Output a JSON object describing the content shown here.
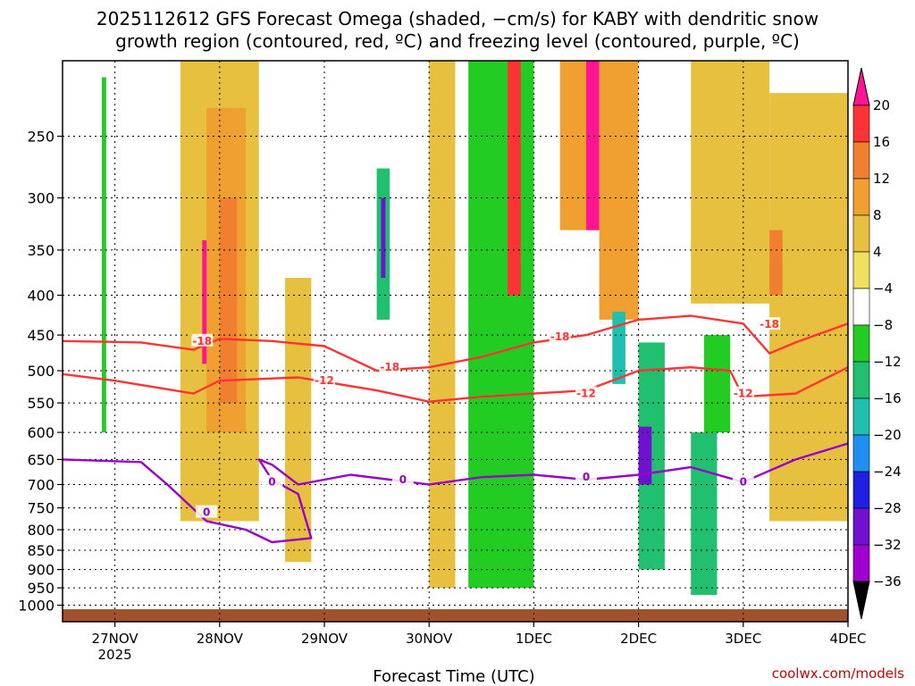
{
  "title_line1": "2025112612 GFS Forecast Omega (shaded, −cm/s) for KABY with dendritic snow",
  "title_line2": "growth region (contoured, red, ºC) and freezing level (contoured, purple, ºC)",
  "watermark": "coolwx.com/models",
  "chart_data": {
    "type": "heatmap",
    "xlabel": "Forecast Time (UTC)",
    "ylabel": "",
    "y_scale": "log-pressure",
    "ylim": [
      1050,
      200
    ],
    "xlim": [
      "2025-11-26T12",
      "2025-12-04T00"
    ],
    "x_ticks": [
      {
        "label": "27NOV",
        "sub": "2025",
        "time": "2025-11-27T00"
      },
      {
        "label": "28NOV",
        "sub": "",
        "time": "2025-11-28T00"
      },
      {
        "label": "29NOV",
        "sub": "",
        "time": "2025-11-29T00"
      },
      {
        "label": "30NOV",
        "sub": "",
        "time": "2025-11-30T00"
      },
      {
        "label": "1DEC",
        "sub": "",
        "time": "2025-12-01T00"
      },
      {
        "label": "2DEC",
        "sub": "",
        "time": "2025-12-02T00"
      },
      {
        "label": "3DEC",
        "sub": "",
        "time": "2025-12-03T00"
      },
      {
        "label": "4DEC",
        "sub": "",
        "time": "2025-12-04T00"
      }
    ],
    "y_ticks": [
      250,
      300,
      350,
      400,
      450,
      500,
      550,
      600,
      650,
      700,
      750,
      800,
      850,
      900,
      950,
      1000
    ],
    "grid": true,
    "colorbar": {
      "tick_labels": [
        "20",
        "16",
        "12",
        "8",
        "4",
        "−4",
        "−8",
        "−12",
        "−16",
        "−20",
        "−24",
        "−28",
        "−32",
        "−36"
      ],
      "colors": [
        "#ff1493",
        "#ff3333",
        "#f08030",
        "#f0a030",
        "#e8c040",
        "#f0e060",
        "#ffffff",
        "#22cc22",
        "#20c070",
        "#20c0b0",
        "#2090f0",
        "#2020e0",
        "#7010d0",
        "#a000d0",
        "#aaaaaa",
        "#000000"
      ]
    },
    "omega_field": [
      {
        "start": "2025-11-26T21",
        "end": "2025-11-26T22",
        "p_top": 210,
        "p_bottom": 600,
        "value": -8
      },
      {
        "start": "2025-11-27T06",
        "end": "2025-11-27T07",
        "p_top": 250,
        "p_bottom": 420,
        "value": -6
      },
      {
        "start": "2025-11-27T15",
        "end": "2025-11-28T09",
        "p_top": 200,
        "p_bottom": 780,
        "value": 6
      },
      {
        "start": "2025-11-27T21",
        "end": "2025-11-28T06",
        "p_top": 230,
        "p_bottom": 600,
        "value": 10
      },
      {
        "start": "2025-11-28T00",
        "end": "2025-11-28T04",
        "p_top": 300,
        "p_bottom": 550,
        "value": 14
      },
      {
        "start": "2025-11-27T20",
        "end": "2025-11-27T21",
        "p_top": 340,
        "p_bottom": 490,
        "value": 22
      },
      {
        "start": "2025-11-28T15",
        "end": "2025-11-28T21",
        "p_top": 380,
        "p_bottom": 880,
        "value": 5
      },
      {
        "start": "2025-11-29T12",
        "end": "2025-11-29T15",
        "p_top": 275,
        "p_bottom": 430,
        "value": -14
      },
      {
        "start": "2025-11-29T13",
        "end": "2025-11-29T14",
        "p_top": 300,
        "p_bottom": 380,
        "value": -30
      },
      {
        "start": "2025-11-30T00",
        "end": "2025-11-30T06",
        "p_top": 200,
        "p_bottom": 950,
        "value": 6
      },
      {
        "start": "2025-11-30T09",
        "end": "2025-12-01T00",
        "p_top": 200,
        "p_bottom": 950,
        "value": -10
      },
      {
        "start": "2025-11-30T18",
        "end": "2025-11-30T21",
        "p_top": 200,
        "p_bottom": 400,
        "value": 20
      },
      {
        "start": "2025-12-01T06",
        "end": "2025-12-01T15",
        "p_top": 200,
        "p_bottom": 330,
        "value": 12
      },
      {
        "start": "2025-12-01T12",
        "end": "2025-12-01T15",
        "p_top": 200,
        "p_bottom": 330,
        "value": 22
      },
      {
        "start": "2025-12-01T15",
        "end": "2025-12-02T00",
        "p_top": 200,
        "p_bottom": 430,
        "value": 10
      },
      {
        "start": "2025-12-01T18",
        "end": "2025-12-01T21",
        "p_top": 420,
        "p_bottom": 520,
        "value": -18
      },
      {
        "start": "2025-12-02T00",
        "end": "2025-12-02T06",
        "p_top": 460,
        "p_bottom": 900,
        "value": -12
      },
      {
        "start": "2025-12-02T00",
        "end": "2025-12-02T03",
        "p_top": 590,
        "p_bottom": 700,
        "value": -28
      },
      {
        "start": "2025-12-02T12",
        "end": "2025-12-02T18",
        "p_top": 600,
        "p_bottom": 970,
        "value": -12
      },
      {
        "start": "2025-12-02T15",
        "end": "2025-12-02T21",
        "p_top": 450,
        "p_bottom": 600,
        "value": -10
      },
      {
        "start": "2025-12-02T12",
        "end": "2025-12-03T06",
        "p_top": 200,
        "p_bottom": 410,
        "value": 8
      },
      {
        "start": "2025-12-03T06",
        "end": "2025-12-04T00",
        "p_top": 220,
        "p_bottom": 780,
        "value": 5
      },
      {
        "start": "2025-12-03T06",
        "end": "2025-12-03T09",
        "p_top": 330,
        "p_bottom": 400,
        "value": 16
      }
    ],
    "series": [
      {
        "contour": "-18",
        "color": "#ff3333",
        "label_positions": [
          {
            "time": "2025-11-27T20",
            "p": 458
          },
          {
            "time": "2025-11-29T15",
            "p": 495
          },
          {
            "time": "2025-12-01T06",
            "p": 452
          },
          {
            "time": "2025-12-03T06",
            "p": 436
          }
        ],
        "points": [
          {
            "time": "2025-11-26T12",
            "p": 458
          },
          {
            "time": "2025-11-27T06",
            "p": 460
          },
          {
            "time": "2025-11-27T18",
            "p": 470
          },
          {
            "time": "2025-11-28T00",
            "p": 455
          },
          {
            "time": "2025-11-28T12",
            "p": 458
          },
          {
            "time": "2025-11-29T00",
            "p": 465
          },
          {
            "time": "2025-11-29T12",
            "p": 500
          },
          {
            "time": "2025-11-30T00",
            "p": 495
          },
          {
            "time": "2025-11-30T12",
            "p": 480
          },
          {
            "time": "2025-12-01T00",
            "p": 460
          },
          {
            "time": "2025-12-01T12",
            "p": 450
          },
          {
            "time": "2025-12-02T00",
            "p": 430
          },
          {
            "time": "2025-12-02T12",
            "p": 425
          },
          {
            "time": "2025-12-03T00",
            "p": 435
          },
          {
            "time": "2025-12-03T06",
            "p": 475
          },
          {
            "time": "2025-12-03T12",
            "p": 460
          },
          {
            "time": "2025-12-04T00",
            "p": 435
          }
        ]
      },
      {
        "contour": "-12",
        "color": "#ff3333",
        "label_positions": [
          {
            "time": "2025-11-29T00",
            "p": 515
          },
          {
            "time": "2025-12-01T12",
            "p": 535
          },
          {
            "time": "2025-12-03T00",
            "p": 535
          }
        ],
        "points": [
          {
            "time": "2025-11-26T12",
            "p": 505
          },
          {
            "time": "2025-11-27T00",
            "p": 515
          },
          {
            "time": "2025-11-27T18",
            "p": 535
          },
          {
            "time": "2025-11-28T00",
            "p": 515
          },
          {
            "time": "2025-11-28T18",
            "p": 510
          },
          {
            "time": "2025-11-29T12",
            "p": 530
          },
          {
            "time": "2025-11-30T00",
            "p": 548
          },
          {
            "time": "2025-11-30T12",
            "p": 540
          },
          {
            "time": "2025-12-01T00",
            "p": 535
          },
          {
            "time": "2025-12-01T12",
            "p": 530
          },
          {
            "time": "2025-12-02T00",
            "p": 500
          },
          {
            "time": "2025-12-02T12",
            "p": 495
          },
          {
            "time": "2025-12-02T21",
            "p": 500
          },
          {
            "time": "2025-12-03T00",
            "p": 540
          },
          {
            "time": "2025-12-03T12",
            "p": 535
          },
          {
            "time": "2025-12-04T00",
            "p": 495
          }
        ]
      },
      {
        "contour": "0",
        "color": "#9900cc",
        "label_positions": [
          {
            "time": "2025-11-27T21",
            "p": 760
          },
          {
            "time": "2025-11-28T12",
            "p": 695
          },
          {
            "time": "2025-11-29T18",
            "p": 690
          },
          {
            "time": "2025-12-01T12",
            "p": 685
          },
          {
            "time": "2025-12-03T00",
            "p": 695
          }
        ],
        "points": [
          {
            "time": "2025-11-26T12",
            "p": 650
          },
          {
            "time": "2025-11-27T06",
            "p": 655
          },
          {
            "time": "2025-11-27T12",
            "p": 700
          },
          {
            "time": "2025-11-27T21",
            "p": 780
          },
          {
            "time": "2025-11-28T06",
            "p": 800
          },
          {
            "time": "2025-11-28T12",
            "p": 830
          },
          {
            "time": "2025-11-28T21",
            "p": 820
          },
          {
            "time": "2025-11-28T18",
            "p": 720
          },
          {
            "time": "2025-11-28T12",
            "p": 690
          },
          {
            "time": "2025-11-28T09",
            "p": 650
          },
          {
            "time": "2025-11-28T12",
            "p": 660
          },
          {
            "time": "2025-11-28T18",
            "p": 700
          },
          {
            "time": "2025-11-29T06",
            "p": 680
          },
          {
            "time": "2025-11-30T00",
            "p": 700
          },
          {
            "time": "2025-11-30T12",
            "p": 685
          },
          {
            "time": "2025-12-01T00",
            "p": 680
          },
          {
            "time": "2025-12-01T12",
            "p": 690
          },
          {
            "time": "2025-12-02T00",
            "p": 680
          },
          {
            "time": "2025-12-02T12",
            "p": 665
          },
          {
            "time": "2025-12-03T00",
            "p": 695
          },
          {
            "time": "2025-12-03T12",
            "p": 650
          },
          {
            "time": "2025-12-04T00",
            "p": 620
          }
        ]
      }
    ]
  }
}
